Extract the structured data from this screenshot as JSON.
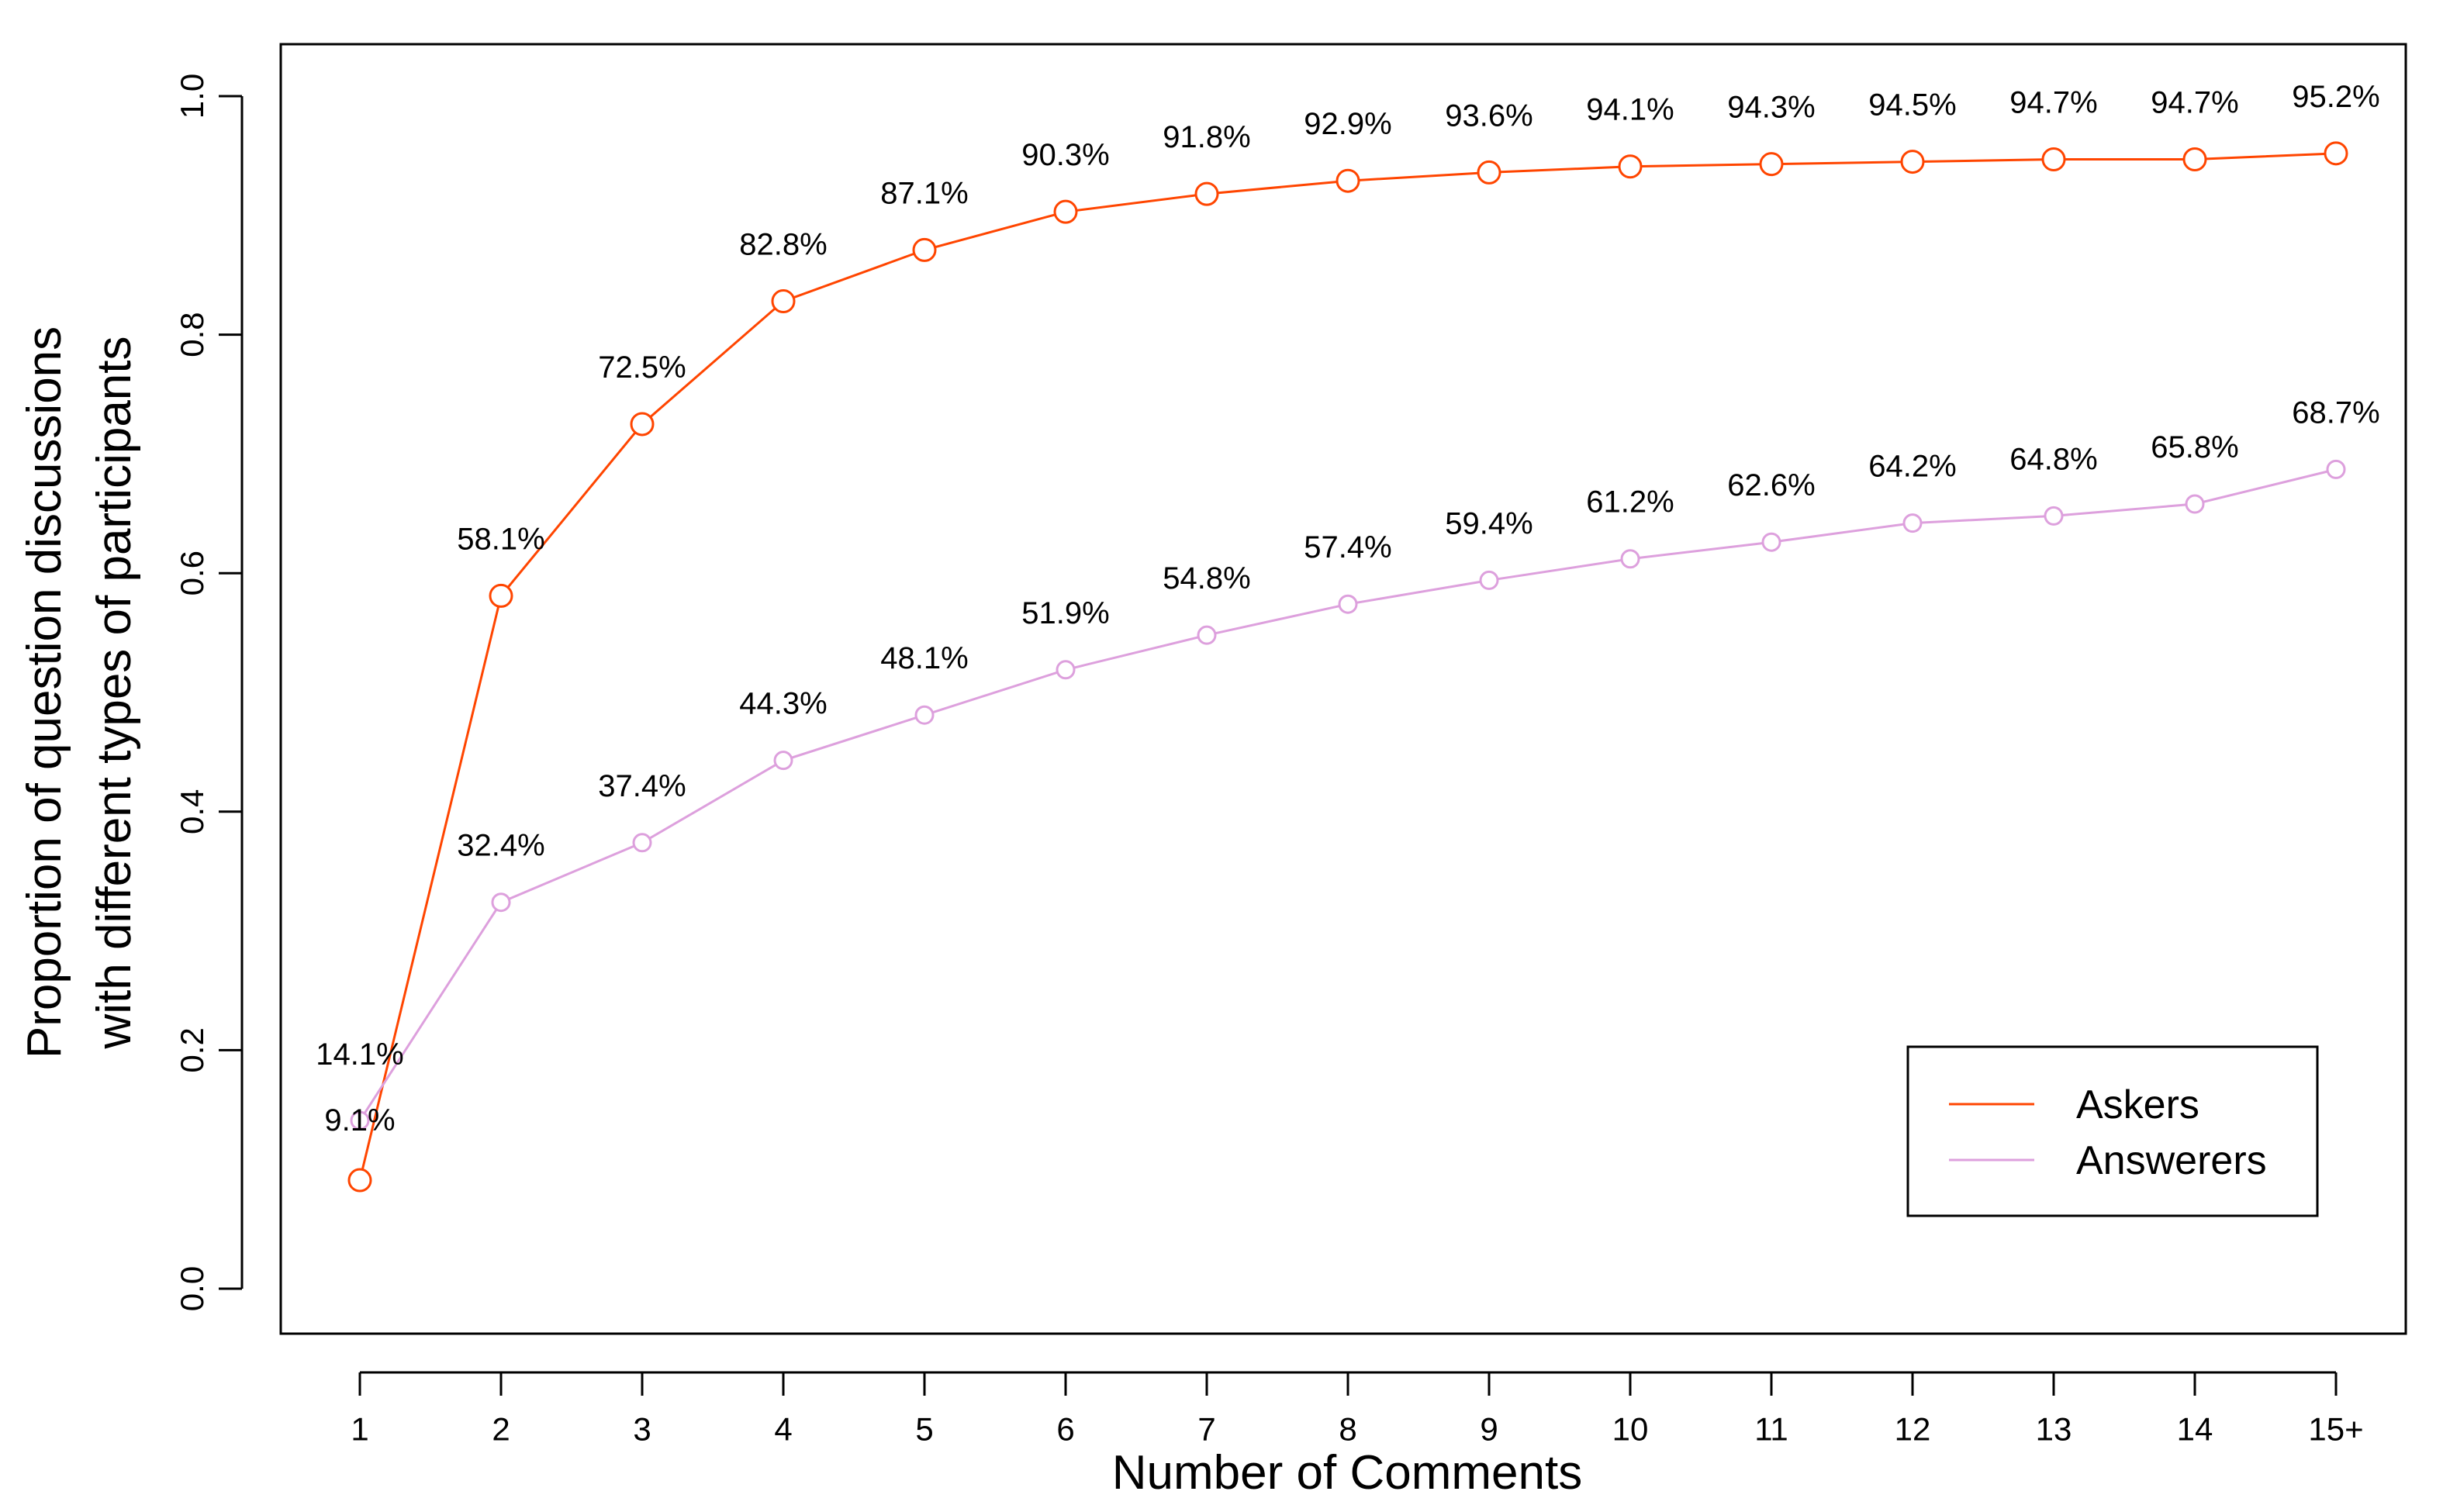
{
  "chart_data": {
    "type": "line",
    "title": "",
    "xlabel": "Number of Comments",
    "ylabel_lines": [
      "Proportion of question discussions",
      "with different types of participants"
    ],
    "categories": [
      "1",
      "2",
      "3",
      "4",
      "5",
      "6",
      "7",
      "8",
      "9",
      "10",
      "11",
      "12",
      "13",
      "14",
      "15+"
    ],
    "ylim": [
      0,
      1.0
    ],
    "yticks": [
      "0.0",
      "0.2",
      "0.4",
      "0.6",
      "0.8",
      "1.0"
    ],
    "grid": false,
    "legend_position": "bottom-right",
    "series": [
      {
        "name": "Askers",
        "color": "#ff4500",
        "values": [
          0.091,
          0.581,
          0.725,
          0.828,
          0.871,
          0.903,
          0.918,
          0.929,
          0.936,
          0.941,
          0.943,
          0.945,
          0.947,
          0.947,
          0.952
        ],
        "labels": [
          "9.1%",
          "58.1%",
          "72.5%",
          "82.8%",
          "87.1%",
          "90.3%",
          "91.8%",
          "92.9%",
          "93.6%",
          "94.1%",
          "94.3%",
          "94.5%",
          "94.7%",
          "94.7%",
          "95.2%"
        ]
      },
      {
        "name": "Answerers",
        "color": "#dda0dd",
        "values": [
          0.141,
          0.324,
          0.374,
          0.443,
          0.481,
          0.519,
          0.548,
          0.574,
          0.594,
          0.612,
          0.626,
          0.642,
          0.648,
          0.658,
          0.687
        ],
        "labels": [
          "14.1%",
          "32.4%",
          "37.4%",
          "44.3%",
          "48.1%",
          "51.9%",
          "54.8%",
          "57.4%",
          "59.4%",
          "61.2%",
          "62.6%",
          "64.2%",
          "64.8%",
          "65.8%",
          "68.7%"
        ]
      }
    ]
  }
}
